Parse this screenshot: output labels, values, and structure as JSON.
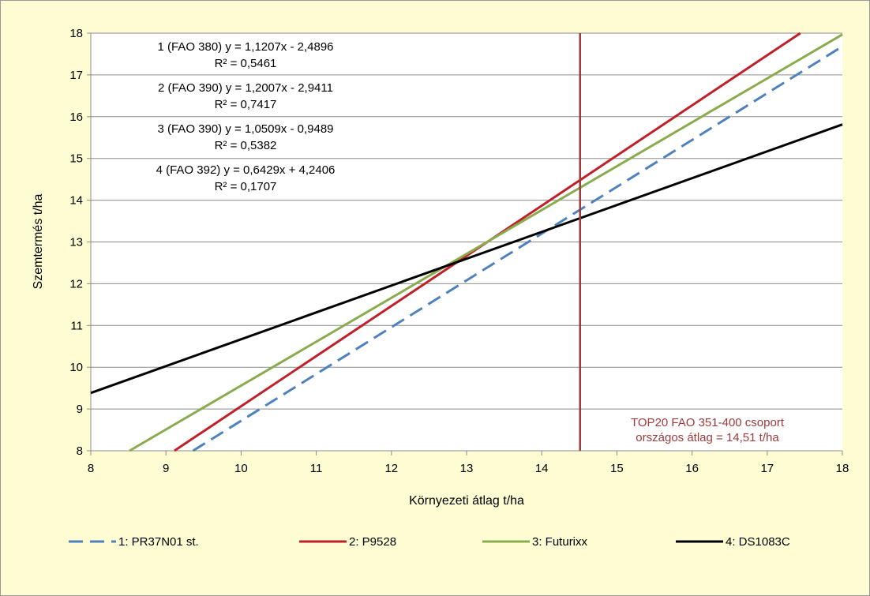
{
  "chart_data": {
    "type": "line",
    "xlabel": "Környezeti átlag t/ha",
    "ylabel": "Szemtermés t/ha",
    "xlim": [
      8,
      18
    ],
    "ylim": [
      8,
      18
    ],
    "x_ticks": [
      "8",
      "9",
      "10",
      "11",
      "12",
      "13",
      "14",
      "15",
      "16",
      "17",
      "18"
    ],
    "y_ticks": [
      "8",
      "9",
      "10",
      "11",
      "12",
      "13",
      "14",
      "15",
      "16",
      "17",
      "18"
    ],
    "grid": "horizontal",
    "legend_position": "bottom",
    "series": [
      {
        "name": "1: PR37N01 st.",
        "slope": 1.1207,
        "intercept": -2.4896,
        "style": "dashed",
        "color": "#4f81bd",
        "equation": "1 (FAO 380) y = 1,1207x - 2,4896",
        "r2": "R² = 0,5461"
      },
      {
        "name": "2: P9528",
        "slope": 1.2007,
        "intercept": -2.9411,
        "style": "solid",
        "color": "#c0202a",
        "equation": "2 (FAO 390) y = 1,2007x - 2,9411",
        "r2": "R² = 0,7417"
      },
      {
        "name": "3: Futurixx",
        "slope": 1.0509,
        "intercept": -0.9489,
        "style": "solid",
        "color": "#8aac4f",
        "equation": "3 (FAO 390) y = 1,0509x - 0,9489",
        "r2": "R² = 0,5382"
      },
      {
        "name": "4: DS1083C",
        "slope": 0.6429,
        "intercept": 4.2406,
        "style": "solid",
        "color": "#000000",
        "equation": "4 (FAO 392) y = 0,6429x + 4,2406",
        "r2": "R² = 0,1707"
      }
    ],
    "reference_line": {
      "x": 14.51,
      "color": "#9b3b3b",
      "label_line1": "TOP20 FAO 351-400 csoport",
      "label_line2": "országos átlag = 14,51 t/ha"
    }
  }
}
